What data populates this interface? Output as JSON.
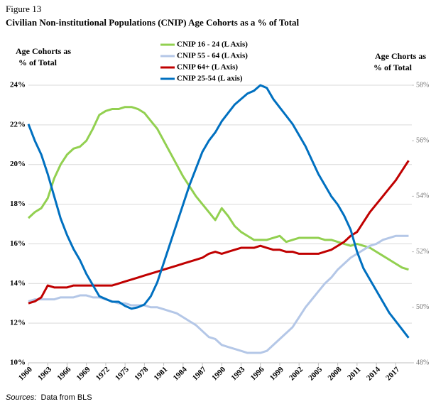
{
  "chart_data": {
    "type": "line",
    "figure_label": "Figure 13",
    "title": "Civilian Non-institutional Populations (CNIP) Age Cohorts as a % of Total",
    "ylabel": [
      "Age Cohorts as",
      "% of Total"
    ],
    "y2label": [
      "Age Chorts as",
      "% of Total"
    ],
    "source_label": "Sources:",
    "source_text": "Data from BLS",
    "x": [
      1960,
      1961,
      1962,
      1963,
      1964,
      1965,
      1966,
      1967,
      1968,
      1969,
      1970,
      1971,
      1972,
      1973,
      1974,
      1975,
      1976,
      1977,
      1978,
      1979,
      1980,
      1981,
      1982,
      1983,
      1984,
      1985,
      1986,
      1987,
      1988,
      1989,
      1990,
      1991,
      1992,
      1993,
      1994,
      1995,
      1996,
      1997,
      1998,
      1999,
      2000,
      2001,
      2002,
      2003,
      2004,
      2005,
      2006,
      2007,
      2008,
      2009,
      2010,
      2011,
      2012,
      2013,
      2014,
      2015,
      2016,
      2017,
      2018,
      2019
    ],
    "xlim": [
      1960,
      2019.5
    ],
    "xticks": [
      1960,
      1963,
      1966,
      1969,
      1972,
      1975,
      1978,
      1981,
      1984,
      1987,
      1990,
      1993,
      1996,
      1999,
      2002,
      2005,
      2008,
      2011,
      2014,
      2017
    ],
    "ylim": [
      10,
      24
    ],
    "yticks": [
      {
        "value": 10,
        "label": "10%"
      },
      {
        "value": 12,
        "label": "12%"
      },
      {
        "value": 14,
        "label": "14%"
      },
      {
        "value": 16,
        "label": "16%"
      },
      {
        "value": 18,
        "label": "18%"
      },
      {
        "value": 20,
        "label": "20%"
      },
      {
        "value": 22,
        "label": "22%"
      },
      {
        "value": 24,
        "label": "24%"
      }
    ],
    "y2lim": [
      48,
      58
    ],
    "y2ticks": [
      {
        "value": 48,
        "label": "48%"
      },
      {
        "value": 50,
        "label": "50%"
      },
      {
        "value": 52,
        "label": "52%"
      },
      {
        "value": 54,
        "label": "54%"
      },
      {
        "value": 56,
        "label": "56%"
      },
      {
        "value": 58,
        "label": "58%"
      }
    ],
    "grid": true,
    "series": [
      {
        "name": "CNIP 16 - 24 (L Axis)",
        "color": "#92d050",
        "values": [
          17.3,
          17.6,
          17.8,
          18.3,
          19.3,
          20.0,
          20.5,
          20.8,
          20.9,
          21.2,
          21.8,
          22.5,
          22.7,
          22.8,
          22.8,
          22.9,
          22.9,
          22.8,
          22.6,
          22.2,
          21.8,
          21.2,
          20.6,
          20.0,
          19.4,
          18.9,
          18.4,
          18.0,
          17.6,
          17.2,
          17.8,
          17.4,
          16.9,
          16.6,
          16.4,
          16.2,
          16.2,
          16.2,
          16.3,
          16.4,
          16.1,
          16.2,
          16.3,
          16.3,
          16.3,
          16.3,
          16.2,
          16.2,
          16.1,
          16.0,
          15.9,
          16.0,
          15.9,
          15.8,
          15.6,
          15.4,
          15.2,
          15.0,
          14.8,
          14.7
        ]
      },
      {
        "name": "CNIP 55 - 64 (L Axis)",
        "color": "#b4c7e7",
        "values": [
          13.1,
          13.2,
          13.2,
          13.2,
          13.2,
          13.3,
          13.3,
          13.3,
          13.4,
          13.4,
          13.3,
          13.3,
          13.2,
          13.1,
          13.0,
          13.0,
          12.9,
          12.9,
          12.9,
          12.8,
          12.8,
          12.7,
          12.6,
          12.5,
          12.3,
          12.1,
          11.9,
          11.6,
          11.3,
          11.2,
          10.9,
          10.8,
          10.7,
          10.6,
          10.5,
          10.5,
          10.5,
          10.6,
          10.9,
          11.2,
          11.5,
          11.8,
          12.3,
          12.8,
          13.2,
          13.6,
          14.0,
          14.3,
          14.7,
          15.0,
          15.3,
          15.5,
          15.7,
          15.9,
          16.0,
          16.2,
          16.3,
          16.4,
          16.4,
          16.4
        ]
      },
      {
        "name": "CNIP 64+ (L Axis)",
        "color": "#c00000",
        "values": [
          13.0,
          13.1,
          13.3,
          13.9,
          13.8,
          13.8,
          13.8,
          13.9,
          13.9,
          13.9,
          13.9,
          13.9,
          13.9,
          13.9,
          14.0,
          14.1,
          14.2,
          14.3,
          14.4,
          14.5,
          14.6,
          14.7,
          14.8,
          14.9,
          15.0,
          15.1,
          15.2,
          15.3,
          15.5,
          15.6,
          15.5,
          15.6,
          15.7,
          15.8,
          15.8,
          15.8,
          15.9,
          15.8,
          15.7,
          15.7,
          15.6,
          15.6,
          15.5,
          15.5,
          15.5,
          15.5,
          15.6,
          15.7,
          15.9,
          16.1,
          16.4,
          16.6,
          17.1,
          17.6,
          18.0,
          18.4,
          18.8,
          19.2,
          19.7,
          20.2
        ]
      },
      {
        "name": "CNIP 25-54 (L axis)",
        "color": "#0070c0",
        "axis": "y2",
        "values": [
          56.6,
          56.0,
          55.5,
          54.8,
          54.0,
          53.2,
          52.6,
          52.1,
          51.7,
          51.2,
          50.8,
          50.4,
          50.3,
          50.2,
          50.2,
          50.05,
          49.95,
          50.0,
          50.1,
          50.4,
          50.9,
          51.6,
          52.3,
          53.0,
          53.7,
          54.4,
          55.0,
          55.6,
          56.0,
          56.3,
          56.7,
          57.0,
          57.3,
          57.5,
          57.7,
          57.8,
          58.0,
          57.9,
          57.5,
          57.2,
          56.9,
          56.6,
          56.2,
          55.8,
          55.3,
          54.8,
          54.4,
          54.0,
          53.7,
          53.3,
          52.8,
          52.0,
          51.4,
          51.0,
          50.6,
          50.2,
          49.8,
          49.5,
          49.2,
          48.9
        ]
      }
    ]
  }
}
